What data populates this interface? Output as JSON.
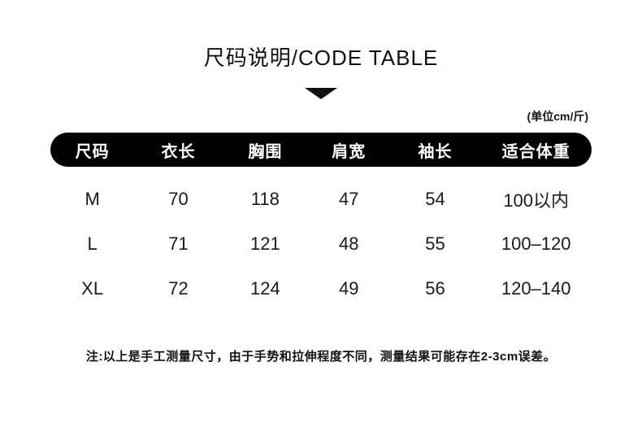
{
  "title": "尺码说明/CODE TABLE",
  "unit_note": "(单位cm/斤)",
  "table": {
    "headers": [
      "尺码",
      "衣长",
      "胸围",
      "肩宽",
      "袖长",
      "适合体重"
    ],
    "rows": [
      [
        "M",
        "70",
        "118",
        "47",
        "54",
        "100以内"
      ],
      [
        "L",
        "71",
        "121",
        "48",
        "55",
        "100–120"
      ],
      [
        "XL",
        "72",
        "124",
        "49",
        "56",
        "120–140"
      ]
    ]
  },
  "footnote": "注:以上是手工测量尺寸，由于手势和拉伸程度不同，测量结果可能存在2-3cm误差。",
  "colors": {
    "background": "#ffffff",
    "header_bg": "#000000",
    "header_text": "#ffffff",
    "text": "#111111"
  },
  "icons": {
    "arrow_down": "triangle-down"
  }
}
